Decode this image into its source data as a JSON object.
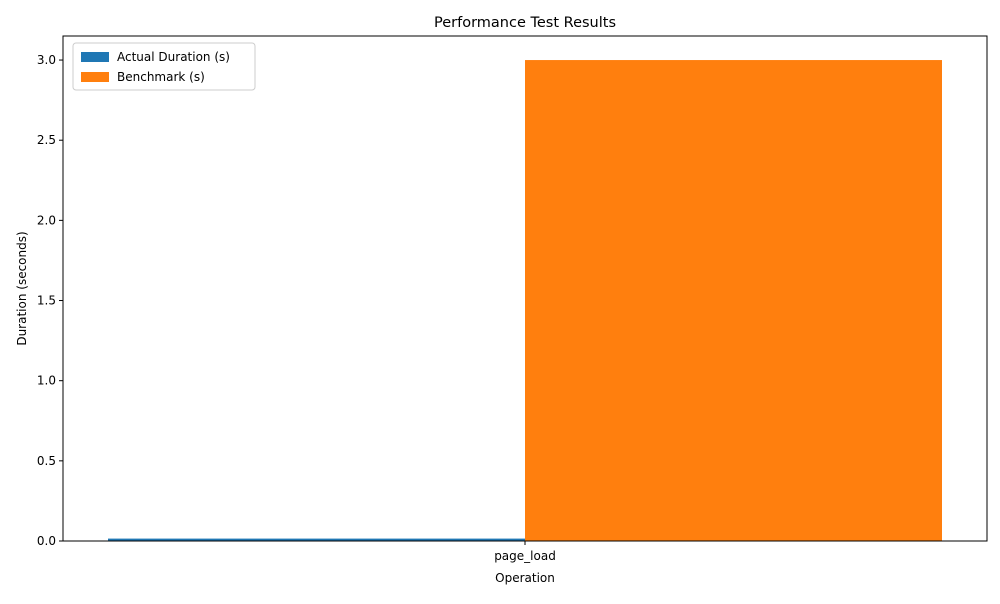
{
  "chart_data": {
    "type": "bar",
    "title": "Performance Test Results",
    "xlabel": "Operation",
    "ylabel": "Duration (seconds)",
    "categories": [
      "page_load"
    ],
    "series": [
      {
        "name": "Actual Duration (s)",
        "values": [
          0.015
        ],
        "color": "#1f77b4"
      },
      {
        "name": "Benchmark (s)",
        "values": [
          3.0
        ],
        "color": "#ff7f0e"
      }
    ],
    "ylim": [
      0,
      3.15
    ],
    "yticks": [
      "0.0",
      "0.5",
      "1.0",
      "1.5",
      "2.0",
      "2.5",
      "3.0"
    ],
    "ytick_values": [
      0,
      0.5,
      1.0,
      1.5,
      2.0,
      2.5,
      3.0
    ],
    "grid": false,
    "legend_position": "top-left"
  }
}
